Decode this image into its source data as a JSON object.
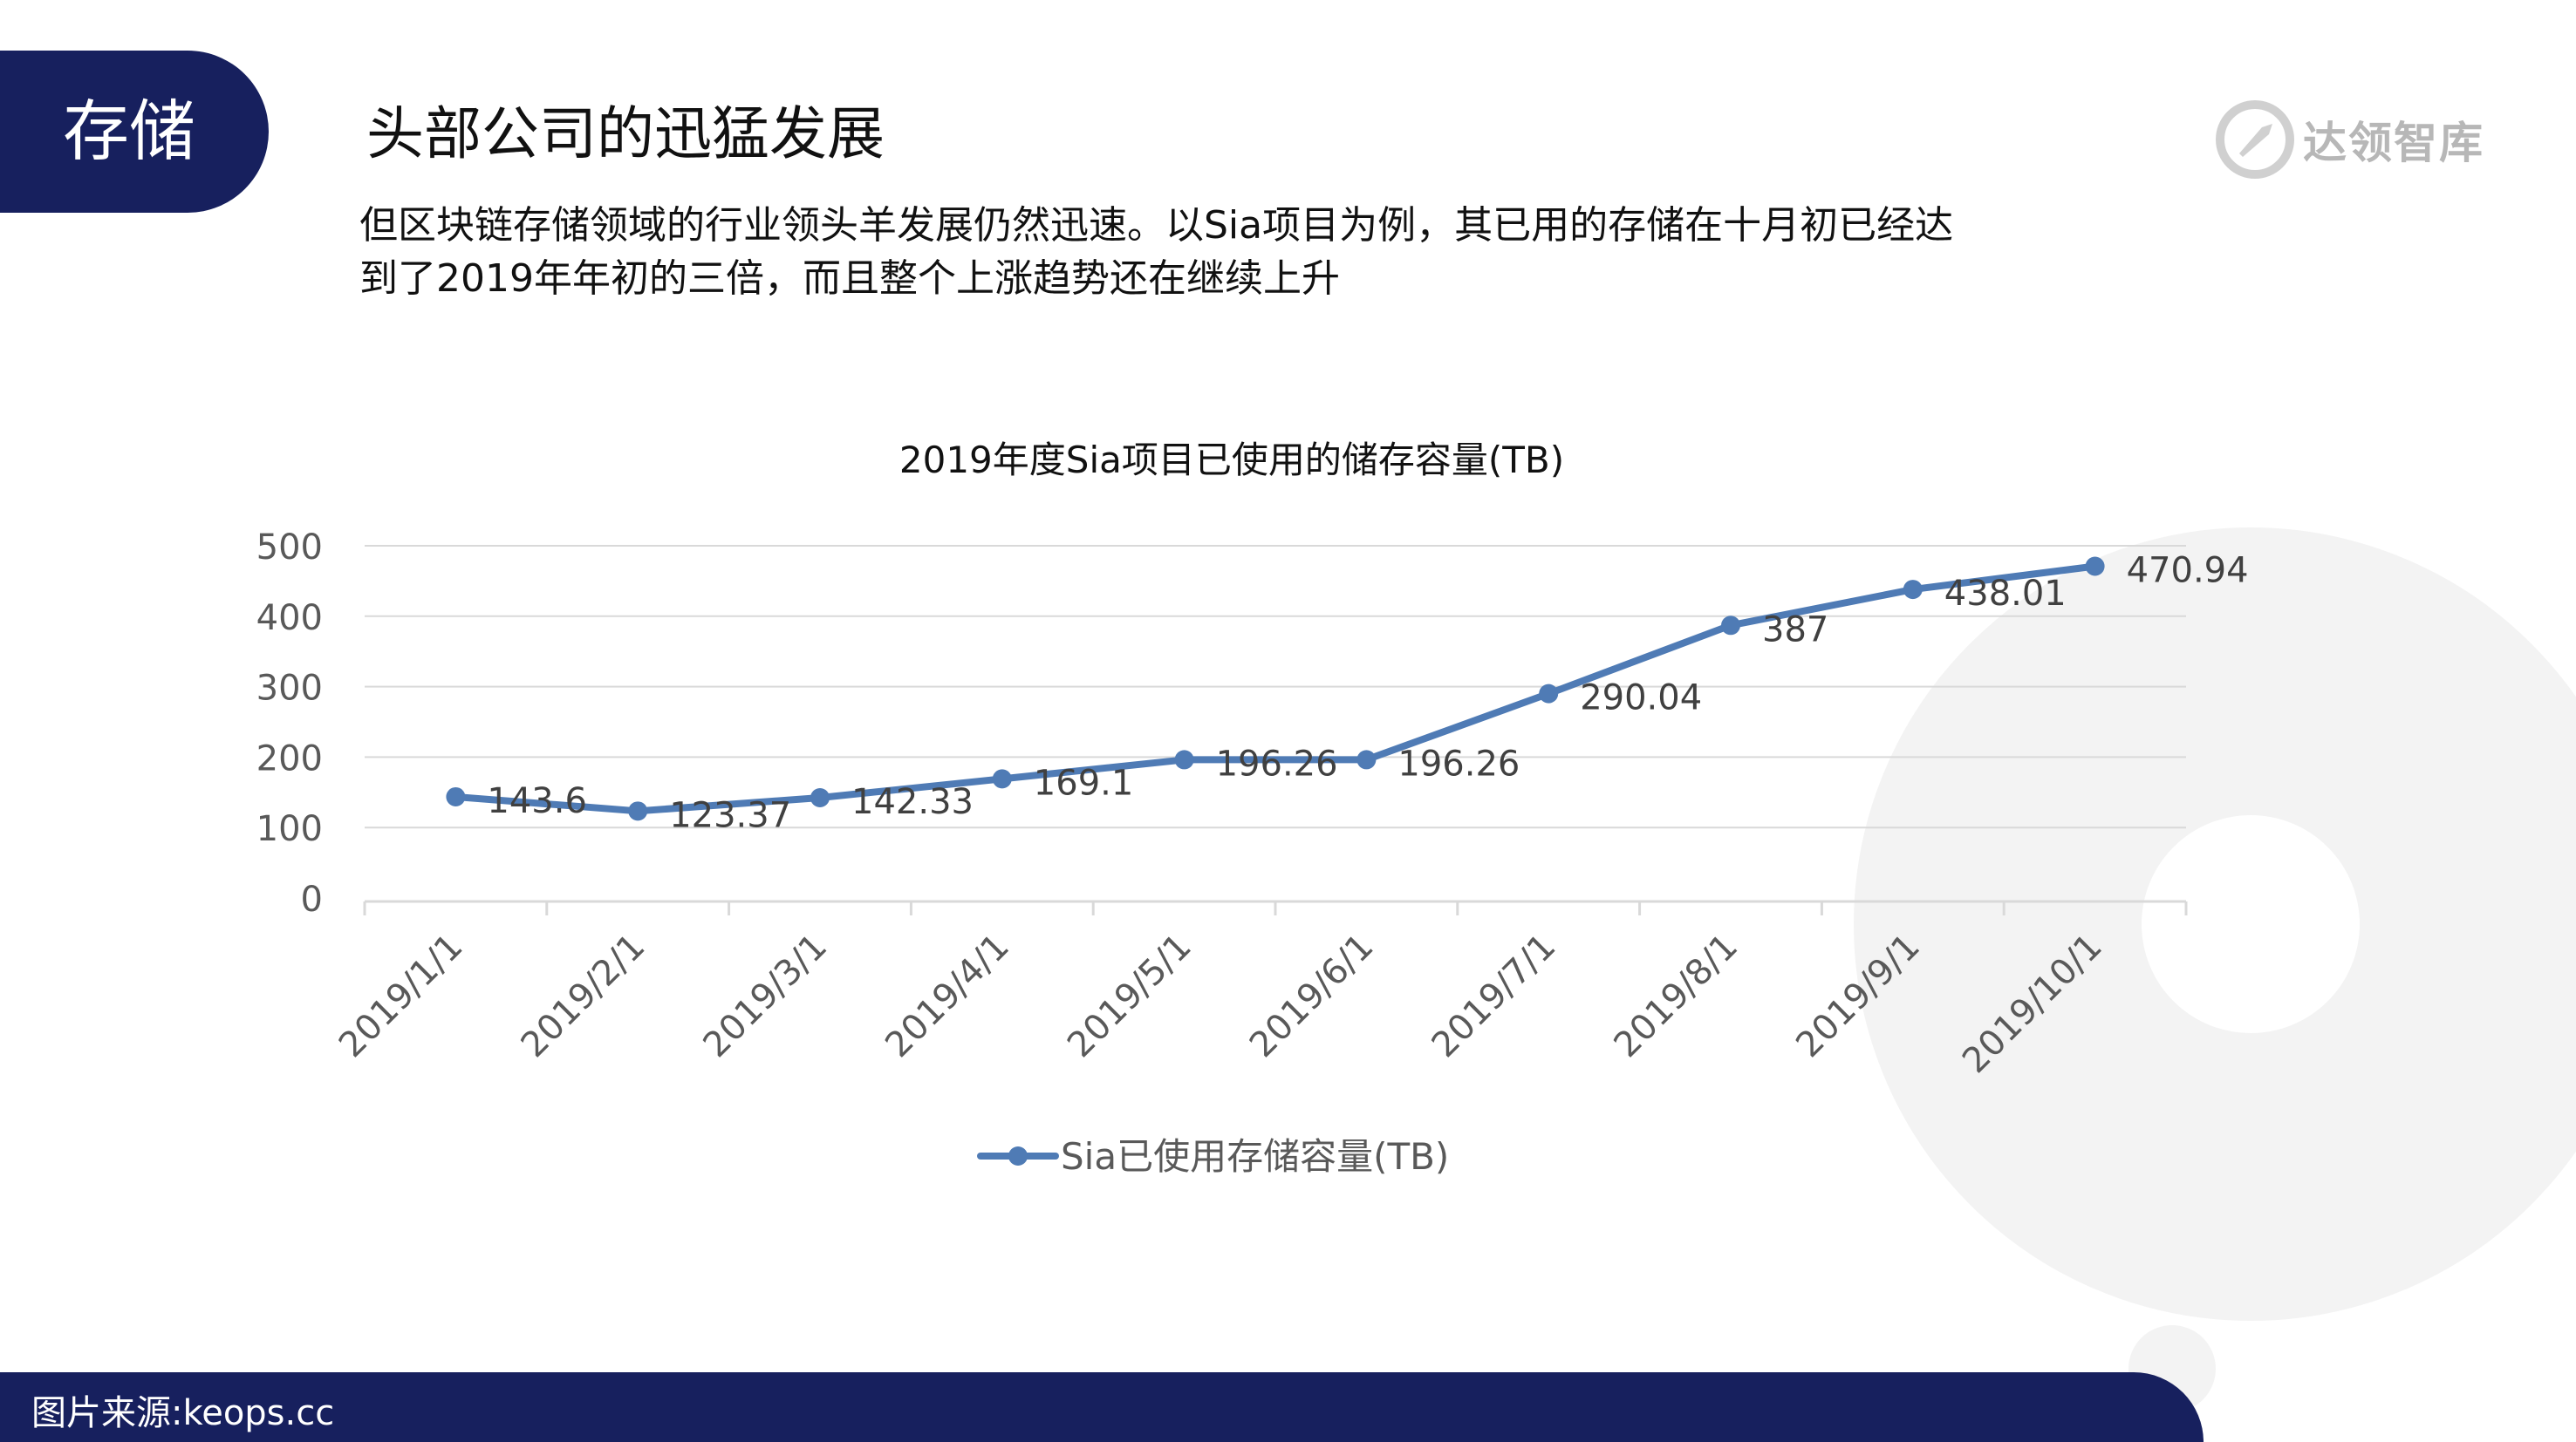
{
  "header": {
    "section_label": "存储",
    "title": "头部公司的迅猛发展",
    "logo_text": "达领智库"
  },
  "description": {
    "line1": "但区块链存储领域的行业领头羊发展仍然迅速。以Sia项目为例，其已用的存储在十月初已经达",
    "line2": "到了2019年年初的三倍，而且整个上涨趋势还在继续上升"
  },
  "footer": {
    "source": "图片来源:keops.cc"
  },
  "colors": {
    "navy": "#17205e",
    "series": "#4f7bb5",
    "grid": "#d9d9d9",
    "axis_text": "#595959",
    "watermark": "#f2f2f2"
  },
  "chart_data": {
    "type": "line",
    "title": "2019年度Sia项目已使用的储存容量(TB)",
    "categories": [
      "2019/1/1",
      "2019/2/1",
      "2019/3/1",
      "2019/4/1",
      "2019/5/1",
      "2019/6/1",
      "2019/7/1",
      "2019/8/1",
      "2019/9/1",
      "2019/10/1"
    ],
    "series": [
      {
        "name": "Sia已使用存储容量(TB)",
        "values": [
          143.6,
          123.37,
          142.33,
          169.1,
          196.26,
          196.26,
          290.04,
          387,
          438.01,
          470.94
        ],
        "labels": [
          "143.6",
          "123.37",
          "142.33",
          "169.1",
          "196.26",
          "196.26",
          "290.04",
          "387",
          "438.01",
          "470.94"
        ]
      }
    ],
    "ylim": [
      0,
      500
    ],
    "yticks": [
      0,
      100,
      200,
      300,
      400,
      500
    ],
    "grid": true,
    "data_labels": true,
    "legend_position": "bottom"
  }
}
